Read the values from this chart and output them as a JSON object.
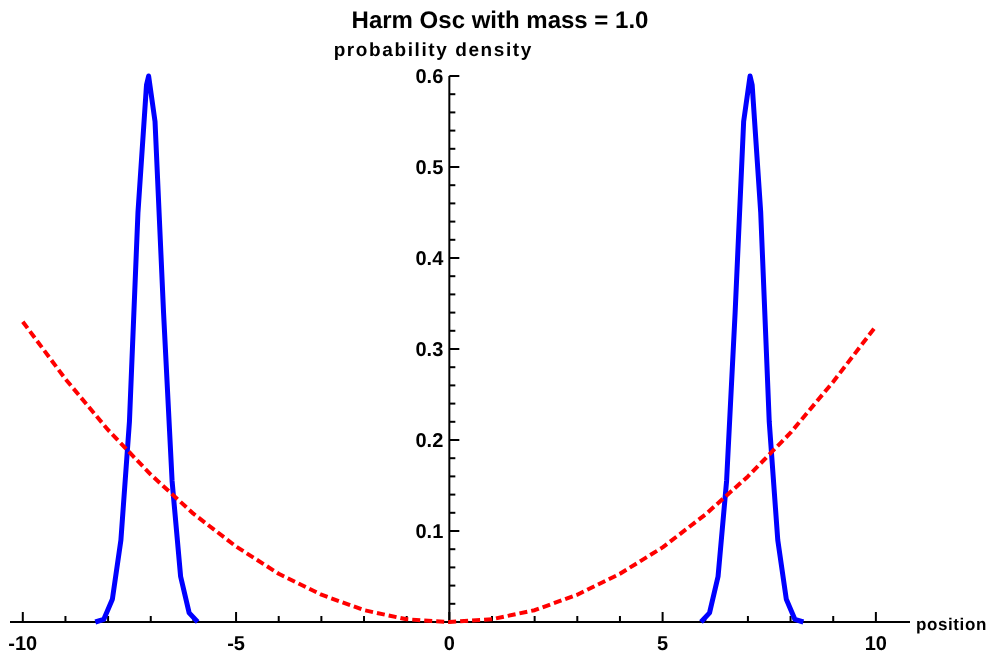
{
  "chart_data": {
    "type": "line",
    "title": "Harm Osc with mass = 1.0",
    "xlabel": "position",
    "ylabel": "probability density",
    "xlim": [
      -10.3,
      10.8
    ],
    "ylim": [
      0,
      0.6
    ],
    "xticks": [
      -10,
      {
        "value": -9,
        "label": null
      },
      {
        "value": -8,
        "label": null
      },
      {
        "value": -7,
        "label": null
      },
      {
        "value": -6,
        "label": null
      },
      -5,
      {
        "value": -4,
        "label": null
      },
      {
        "value": -3,
        "label": null
      },
      {
        "value": -2,
        "label": null
      },
      {
        "value": -1,
        "label": null
      },
      0,
      {
        "value": 1,
        "label": null
      },
      {
        "value": 2,
        "label": null
      },
      {
        "value": 3,
        "label": null
      },
      {
        "value": 4,
        "label": null
      },
      5,
      {
        "value": 6,
        "label": null
      },
      {
        "value": 7,
        "label": null
      },
      {
        "value": 8,
        "label": null
      },
      {
        "value": 9,
        "label": null
      },
      10
    ],
    "yticks": [
      {
        "value": 0.02,
        "label": null
      },
      {
        "value": 0.04,
        "label": null
      },
      {
        "value": 0.06,
        "label": null
      },
      {
        "value": 0.08,
        "label": null
      },
      0.1,
      {
        "value": 0.12,
        "label": null
      },
      {
        "value": 0.14,
        "label": null
      },
      {
        "value": 0.16,
        "label": null
      },
      {
        "value": 0.18,
        "label": null
      },
      0.2,
      {
        "value": 0.22,
        "label": null
      },
      {
        "value": 0.24,
        "label": null
      },
      {
        "value": 0.26,
        "label": null
      },
      {
        "value": 0.28,
        "label": null
      },
      0.3,
      {
        "value": 0.32,
        "label": null
      },
      {
        "value": 0.34,
        "label": null
      },
      {
        "value": 0.36,
        "label": null
      },
      {
        "value": 0.38,
        "label": null
      },
      0.4,
      {
        "value": 0.42,
        "label": null
      },
      {
        "value": 0.44,
        "label": null
      },
      {
        "value": 0.46,
        "label": null
      },
      {
        "value": 0.48,
        "label": null
      },
      0.5,
      {
        "value": 0.52,
        "label": null
      },
      {
        "value": 0.54,
        "label": null
      },
      {
        "value": 0.56,
        "label": null
      },
      {
        "value": 0.58,
        "label": null
      },
      0.6
    ],
    "grid": false,
    "marker": "none",
    "series": [
      {
        "color": "#0000ff",
        "line_style": "solid",
        "x": [
          -8.3,
          -8.1,
          -7.9,
          -7.7,
          -7.5,
          -7.3,
          -7.1,
          -7.05,
          -6.9,
          -6.7,
          -6.5,
          -6.3,
          -6.1,
          -5.9
        ],
        "values": [
          0,
          0.003,
          0.025,
          0.09,
          0.22,
          0.45,
          0.59,
          0.6,
          0.55,
          0.34,
          0.155,
          0.05,
          0.01,
          0
        ]
      },
      {
        "color": "#0000ff",
        "line_style": "solid",
        "x": [
          5.9,
          6.1,
          6.3,
          6.5,
          6.7,
          6.9,
          7.05,
          7.1,
          7.3,
          7.5,
          7.7,
          7.9,
          8.1,
          8.3
        ],
        "values": [
          0,
          0.01,
          0.05,
          0.155,
          0.34,
          0.55,
          0.6,
          0.59,
          0.45,
          0.22,
          0.09,
          0.025,
          0.003,
          0
        ]
      },
      {
        "color": "#ff0000",
        "line_style": "dashed",
        "x": [
          -10,
          -9,
          -8,
          -7,
          -6,
          -5,
          -4,
          -3,
          -2,
          -1,
          0,
          1,
          2,
          3,
          4,
          5,
          6,
          7,
          8,
          9,
          10
        ],
        "values": [
          0.33,
          0.267,
          0.211,
          0.162,
          0.119,
          0.083,
          0.053,
          0.03,
          0.013,
          0.003,
          0,
          0.003,
          0.013,
          0.03,
          0.053,
          0.082,
          0.118,
          0.16,
          0.208,
          0.264,
          0.325
        ]
      }
    ]
  }
}
